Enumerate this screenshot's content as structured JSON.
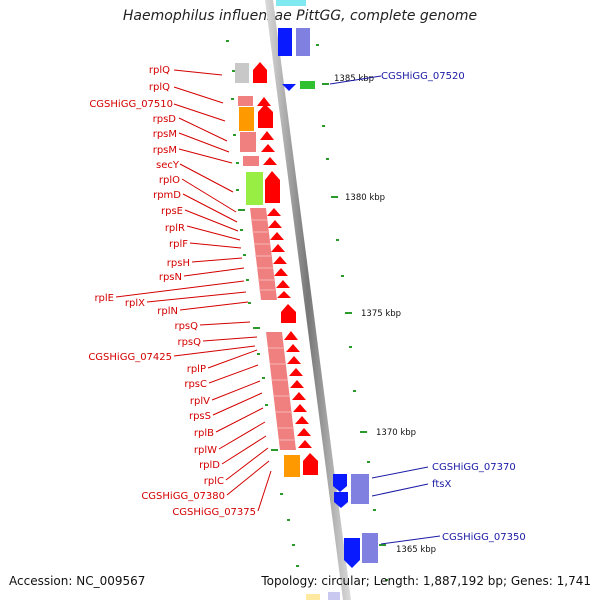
{
  "title": "Haemophilus influenzae PittGG, complete genome",
  "footer": {
    "accession": "Accession: NC_009567",
    "summary": "Topology: circular; Length: 1,887,192 bp; Genes: 1,741"
  },
  "colors": {
    "label_left": "#d40000",
    "label_right": "#1a1aa6",
    "backbone": "#8a8a8a",
    "tick": "#2a9a2a",
    "ribosomal_block": "#f08080",
    "forward_arrow": "#ff0000",
    "reverse_arrow": "#0000ff",
    "reverse_block": "#8080e0"
  },
  "kbp_markers": [
    {
      "label": "1385 kbp"
    },
    {
      "label": "1380 kbp"
    },
    {
      "label": "1375 kbp"
    },
    {
      "label": "1370 kbp"
    },
    {
      "label": "1365 kbp"
    }
  ],
  "genes_left": [
    "rplQ",
    "rplQ",
    "CGSHiGG_07510",
    "rpsD",
    "rpsM",
    "rpsM",
    "secY",
    "rplO",
    "rpmD",
    "rpsE",
    "rplR",
    "rplF",
    "rpsH",
    "rpsN",
    "rplE",
    "rplX",
    "rplN",
    "rpsQ",
    "rpsQ",
    "CGSHiGG_07425",
    "rplP",
    "rpsC",
    "rplV",
    "rpsS",
    "rplB",
    "rplW",
    "rplD",
    "rplC",
    "CGSHiGG_07380",
    "CGSHiGG_07375"
  ],
  "genes_right": [
    "CGSHiGG_07520",
    "CGSHiGG_07370",
    "ftsX",
    "CGSHiGG_07350"
  ]
}
